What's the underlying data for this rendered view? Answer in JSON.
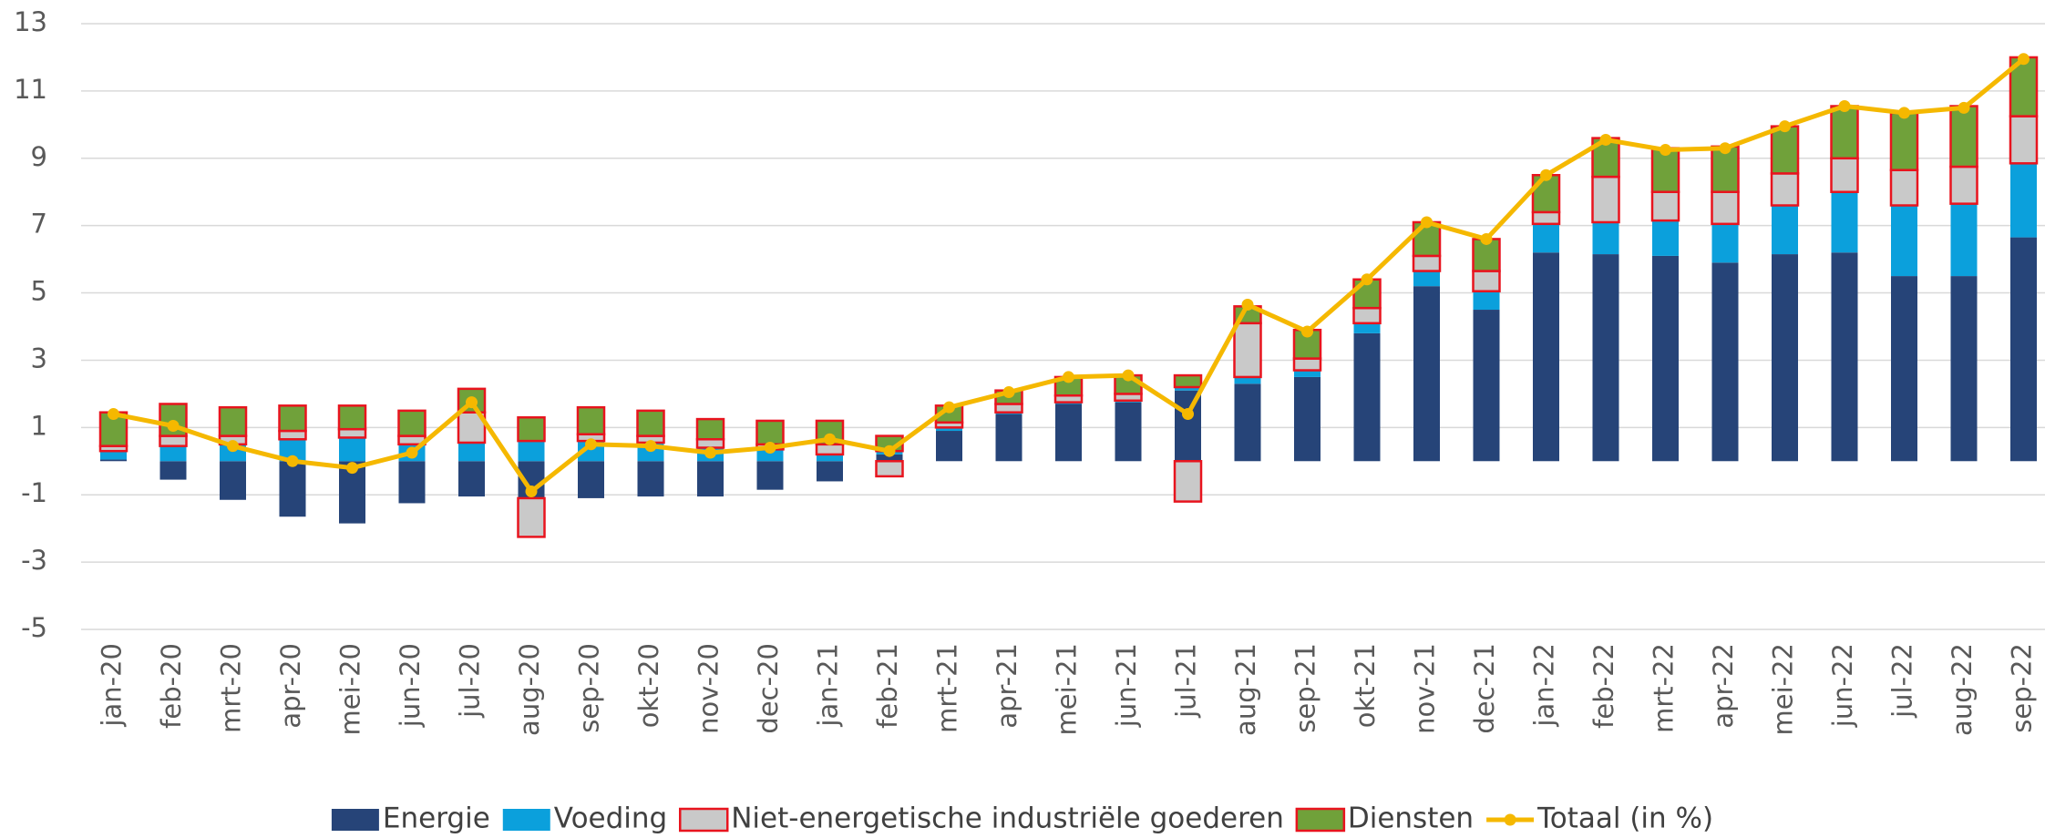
{
  "chart_data": {
    "type": "stacked-bar-line",
    "categories": [
      "jan-20",
      "feb-20",
      "mrt-20",
      "apr-20",
      "mei-20",
      "jun-20",
      "jul-20",
      "aug-20",
      "sep-20",
      "okt-20",
      "nov-20",
      "dec-20",
      "jan-21",
      "feb-21",
      "mrt-21",
      "apr-21",
      "mei-21",
      "jun-21",
      "jul-21",
      "aug-21",
      "sep-21",
      "okt-21",
      "nov-21",
      "dec-21",
      "jan-22",
      "feb-22",
      "mrt-22",
      "apr-22",
      "mei-22",
      "jun-22",
      "jul-22",
      "aug-22",
      "sep-22"
    ],
    "series": [
      {
        "name": "Energie",
        "type": "bar",
        "color": "#264478",
        "values": [
          0.05,
          -0.55,
          -1.15,
          -1.65,
          -1.85,
          -1.25,
          -1.05,
          -1.1,
          -1.1,
          -1.05,
          -1.05,
          -0.85,
          -0.6,
          0.2,
          0.9,
          1.4,
          1.7,
          1.75,
          2.1,
          2.3,
          2.5,
          3.8,
          5.2,
          4.5,
          6.2,
          6.15,
          6.1,
          5.9,
          6.15,
          6.2,
          5.5,
          5.5,
          6.65
        ]
      },
      {
        "name": "Voeding",
        "type": "bar",
        "color": "#0ba0dc",
        "values": [
          0.25,
          0.45,
          0.5,
          0.65,
          0.7,
          0.5,
          0.55,
          0.6,
          0.6,
          0.55,
          0.4,
          0.35,
          0.2,
          0.1,
          0.1,
          0.05,
          0.05,
          0.05,
          0.1,
          0.2,
          0.2,
          0.3,
          0.45,
          0.55,
          0.85,
          0.95,
          1.05,
          1.15,
          1.45,
          1.8,
          2.1,
          2.15,
          2.2
        ]
      },
      {
        "name": "Niet-energetische industriële goederen",
        "type": "bar",
        "color": "#c9c9c9",
        "stroke": "#e8141e",
        "values": [
          0.15,
          0.3,
          0.25,
          0.25,
          0.25,
          0.25,
          0.9,
          -1.15,
          0.2,
          0.2,
          0.25,
          0.15,
          0.3,
          -0.45,
          0.15,
          0.25,
          0.2,
          0.2,
          -1.2,
          1.6,
          0.35,
          0.45,
          0.45,
          0.6,
          0.35,
          1.35,
          0.85,
          0.95,
          0.95,
          1.0,
          1.05,
          1.1,
          1.4
        ]
      },
      {
        "name": "Diensten",
        "type": "bar",
        "color": "#70a13a",
        "stroke": "#e8141e",
        "values": [
          1.0,
          0.95,
          0.85,
          0.75,
          0.7,
          0.75,
          0.7,
          0.7,
          0.8,
          0.75,
          0.6,
          0.7,
          0.7,
          0.45,
          0.5,
          0.4,
          0.55,
          0.55,
          0.35,
          0.5,
          0.85,
          0.85,
          1.0,
          0.95,
          1.1,
          1.15,
          1.3,
          1.35,
          1.4,
          1.55,
          1.7,
          1.8,
          1.75
        ]
      },
      {
        "name": "Totaal (in %)",
        "type": "line",
        "color": "#f5b800",
        "values": [
          1.4,
          1.05,
          0.45,
          0.0,
          -0.2,
          0.25,
          1.75,
          -0.9,
          0.5,
          0.45,
          0.25,
          0.4,
          0.65,
          0.3,
          1.6,
          2.05,
          2.5,
          2.55,
          1.4,
          4.65,
          3.85,
          5.4,
          7.1,
          6.6,
          8.5,
          9.55,
          9.25,
          9.3,
          9.95,
          10.55,
          10.35,
          10.5,
          11.95
        ]
      }
    ],
    "ylim": [
      -5,
      13
    ],
    "yticks": [
      -5,
      -3,
      -1,
      1,
      3,
      5,
      7,
      9,
      11,
      13
    ],
    "grid": true
  }
}
